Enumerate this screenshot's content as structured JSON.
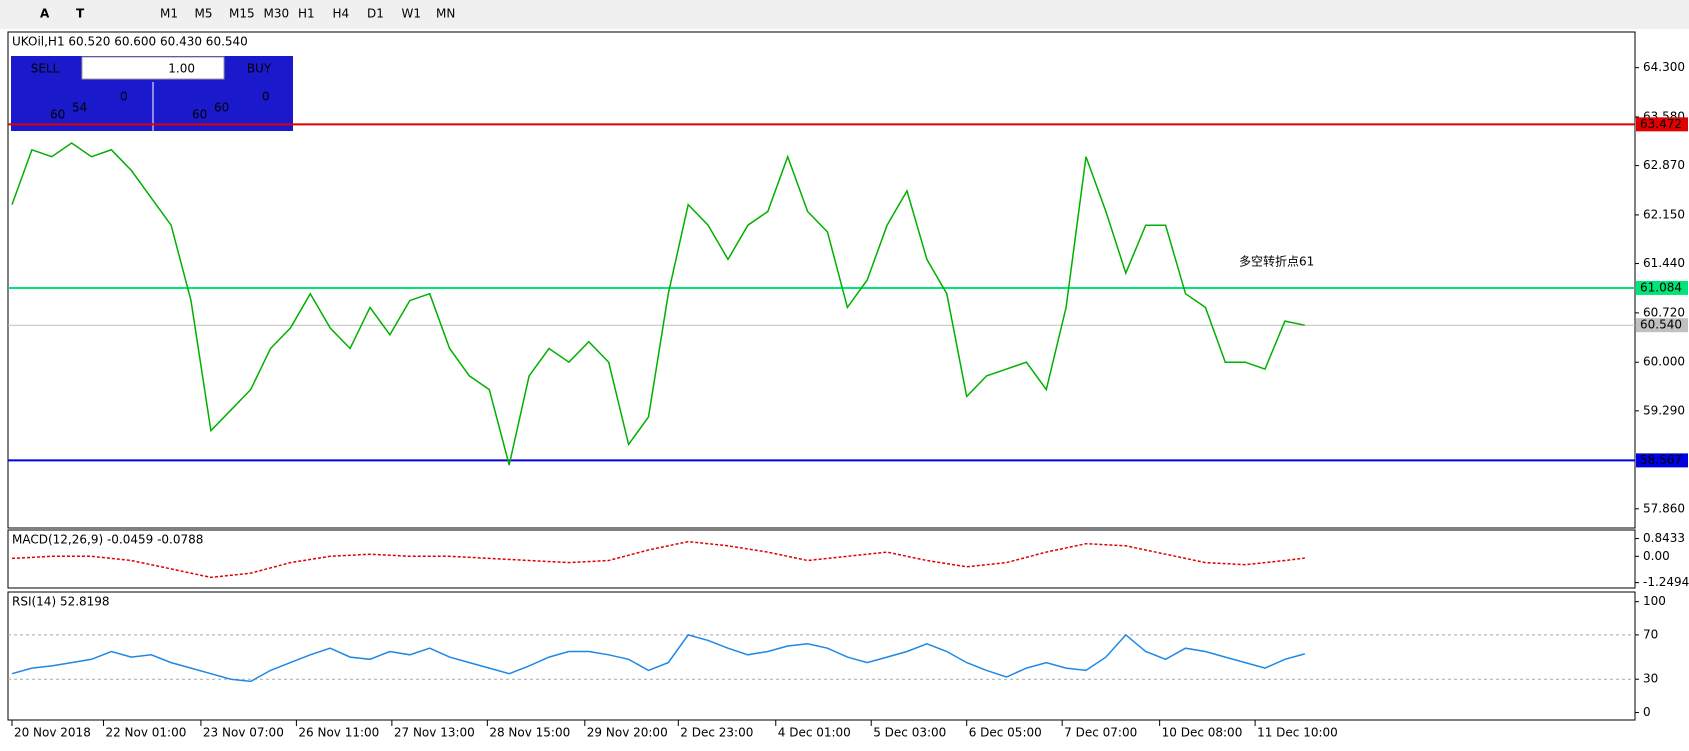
{
  "toolbar": {
    "tools": [
      "A",
      "T"
    ],
    "timeframes": [
      "M1",
      "M5",
      "M15",
      "M30",
      "H1",
      "H4",
      "D1",
      "W1",
      "MN"
    ]
  },
  "trade_panel": {
    "sell": "SELL",
    "lots": "1.00",
    "buy": "BUY",
    "bid_big": "60",
    "bid_mid": "54",
    "bid_sup": "0",
    "ask_big": "60",
    "ask_mid": "60",
    "ask_sup": "0"
  },
  "chart_data": [
    {
      "type": "line",
      "title": "UKOil,H1  60.520 60.600 60.430 60.540",
      "annotation": "多空转折点61",
      "color": "#00b000",
      "x": [
        0,
        1,
        2,
        3,
        4,
        5,
        6,
        7,
        8,
        9,
        10,
        11,
        12,
        13,
        14,
        15,
        16,
        17,
        18,
        19,
        20,
        21,
        22,
        23,
        24,
        25,
        26,
        27,
        28,
        29,
        30,
        31,
        32,
        33,
        34,
        35,
        36,
        37,
        38,
        39,
        40,
        41,
        42,
        43,
        44,
        45,
        46,
        47,
        48,
        49,
        50,
        51,
        52,
        53,
        54,
        55,
        56,
        57,
        58,
        59,
        60,
        61,
        62,
        63,
        64,
        65
      ],
      "values": [
        62.3,
        63.1,
        63.0,
        63.2,
        63.0,
        63.1,
        62.8,
        62.4,
        62.0,
        60.9,
        59.0,
        59.3,
        59.6,
        60.2,
        60.5,
        61.0,
        60.5,
        60.2,
        60.8,
        60.4,
        60.9,
        61.0,
        60.2,
        59.8,
        59.6,
        58.5,
        59.8,
        60.2,
        60.0,
        60.3,
        60.0,
        58.8,
        59.2,
        61.0,
        62.3,
        62.0,
        61.5,
        62.0,
        62.2,
        63.0,
        62.2,
        61.9,
        60.8,
        61.2,
        62.0,
        62.5,
        61.5,
        61.0,
        59.5,
        59.8,
        59.9,
        60.0,
        59.6,
        60.8,
        63.0,
        62.2,
        61.3,
        62.0,
        62.0,
        61.0,
        60.8,
        60.0,
        60.0,
        59.9,
        60.6,
        60.54
      ],
      "xlim": [
        -0.2,
        81.6
      ],
      "xticks": [
        {
          "value": 0,
          "label": "20 Nov 2018"
        },
        {
          "value": 4.6,
          "label": "22 Nov 01:00"
        },
        {
          "value": 9.5,
          "label": "23 Nov 07:00"
        },
        {
          "value": 14.3,
          "label": "26 Nov 11:00"
        },
        {
          "value": 19.1,
          "label": "27 Nov 13:00"
        },
        {
          "value": 23.9,
          "label": "28 Nov 15:00"
        },
        {
          "value": 28.8,
          "label": "29 Nov 20:00"
        },
        {
          "value": 33.5,
          "label": "2 Dec 23:00"
        },
        {
          "value": 38.4,
          "label": "4 Dec 01:00"
        },
        {
          "value": 43.2,
          "label": "5 Dec 03:00"
        },
        {
          "value": 48.0,
          "label": "6 Dec 05:00"
        },
        {
          "value": 52.8,
          "label": "7 Dec 07:00"
        },
        {
          "value": 57.7,
          "label": "10 Dec 08:00"
        },
        {
          "value": 62.5,
          "label": "11 Dec 10:00"
        }
      ],
      "ylim": [
        57.58,
        64.82
      ],
      "yticks": [
        {
          "value": 64.3,
          "label": "64.300"
        },
        {
          "value": 63.58,
          "label": "63.580"
        },
        {
          "value": 62.87,
          "label": "62.870"
        },
        {
          "value": 62.15,
          "label": "62.150"
        },
        {
          "value": 61.44,
          "label": "61.440"
        },
        {
          "value": 60.72,
          "label": "60.720"
        },
        {
          "value": 60.0,
          "label": "60.000"
        },
        {
          "value": 59.29,
          "label": "59.290"
        },
        {
          "value": 57.86,
          "label": "57.860"
        }
      ],
      "levels": [
        {
          "value": 63.472,
          "label": "63.472",
          "color": "#e00000"
        },
        {
          "value": 61.084,
          "label": "61.084",
          "color": "#00e676"
        },
        {
          "value": 60.54,
          "label": "60.540",
          "color": "#c0c0c0"
        },
        {
          "value": 58.567,
          "label": "58.567",
          "color": "#0000e0"
        }
      ]
    },
    {
      "type": "line",
      "title": "MACD(12,26,9) -0.0459 -0.0788",
      "color": "#e00000",
      "x": [
        0,
        2,
        4,
        6,
        8,
        10,
        12,
        14,
        16,
        18,
        20,
        22,
        24,
        26,
        28,
        30,
        32,
        34,
        36,
        38,
        40,
        42,
        44,
        46,
        48,
        50,
        52,
        54,
        56,
        58,
        60,
        62,
        64,
        65
      ],
      "values": [
        -0.1,
        0.0,
        0.0,
        -0.2,
        -0.6,
        -1.0,
        -0.8,
        -0.3,
        0.0,
        0.1,
        0.0,
        0.0,
        -0.1,
        -0.2,
        -0.3,
        -0.2,
        0.3,
        0.7,
        0.5,
        0.2,
        -0.2,
        0.0,
        0.2,
        -0.2,
        -0.5,
        -0.3,
        0.2,
        0.6,
        0.5,
        0.1,
        -0.3,
        -0.4,
        -0.2,
        -0.0788
      ],
      "xlim": [
        -0.2,
        81.6
      ],
      "ylim": [
        -1.505,
        1.25
      ],
      "yticks": [
        0.8433,
        {
          "value": 0,
          "label": "0.00"
        },
        -1.2494
      ]
    },
    {
      "type": "line",
      "title": "RSI(14) 52.8198",
      "color": "#1e88e5",
      "x": [
        0,
        1,
        2,
        3,
        4,
        5,
        6,
        7,
        8,
        9,
        10,
        11,
        12,
        13,
        14,
        15,
        16,
        17,
        18,
        19,
        20,
        21,
        22,
        23,
        24,
        25,
        26,
        27,
        28,
        29,
        30,
        31,
        32,
        33,
        34,
        35,
        36,
        37,
        38,
        39,
        40,
        41,
        42,
        43,
        44,
        45,
        46,
        47,
        48,
        49,
        50,
        51,
        52,
        53,
        54,
        55,
        56,
        57,
        58,
        59,
        60,
        61,
        62,
        63,
        64,
        65
      ],
      "values": [
        35,
        40,
        42,
        45,
        48,
        55,
        50,
        52,
        45,
        40,
        35,
        30,
        28,
        38,
        45,
        52,
        58,
        50,
        48,
        55,
        52,
        58,
        50,
        45,
        40,
        35,
        42,
        50,
        55,
        55,
        52,
        48,
        38,
        45,
        70,
        65,
        58,
        52,
        55,
        60,
        62,
        58,
        50,
        45,
        50,
        55,
        62,
        55,
        45,
        38,
        32,
        40,
        45,
        40,
        38,
        50,
        70,
        55,
        48,
        58,
        55,
        50,
        45,
        40,
        48,
        52.8198
      ],
      "xlim": [
        -0.2,
        81.6
      ],
      "ylim": [
        -6.8,
        108.7
      ],
      "yticks": [
        100,
        70,
        30,
        0
      ],
      "levels": [
        70,
        30
      ]
    }
  ]
}
